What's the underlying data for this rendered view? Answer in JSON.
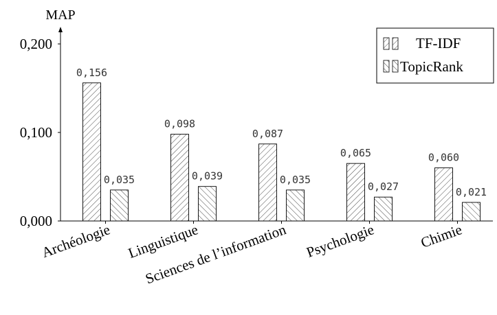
{
  "chart_data": {
    "type": "bar",
    "ylabel": "MAP",
    "ylim": [
      0,
      0.2
    ],
    "y_ticks": [
      {
        "value": 0.0,
        "label": "0,000"
      },
      {
        "value": 0.1,
        "label": "0,100"
      },
      {
        "value": 0.2,
        "label": "0,200"
      }
    ],
    "categories": [
      "Archéologie",
      "Linguistique",
      "Sciences de l’information",
      "Psychologie",
      "Chimie"
    ],
    "series": [
      {
        "name": "TF-IDF",
        "pattern": "north-east-lines",
        "values": [
          0.156,
          0.098,
          0.087,
          0.065,
          0.06
        ],
        "labels": [
          "0,156",
          "0,098",
          "0,087",
          "0,065",
          "0,060"
        ]
      },
      {
        "name": "TopicRank",
        "pattern": "north-west-lines",
        "values": [
          0.035,
          0.039,
          0.035,
          0.027,
          0.021
        ],
        "labels": [
          "0,035",
          "0,039",
          "0,035",
          "0,027",
          "0,021"
        ]
      }
    ],
    "legend_position": "top-right",
    "grid": false
  }
}
